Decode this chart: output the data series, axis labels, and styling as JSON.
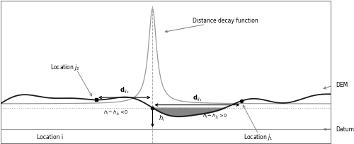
{
  "figsize": [
    5.0,
    2.04
  ],
  "dpi": 100,
  "bg_color": "#ffffff",
  "dem_color": "#1a1a1a",
  "decay_color": "#999999",
  "fill_color": "#707070",
  "datum_line_color": "#999999",
  "x_min": 0.0,
  "x_max": 10.0,
  "y_min": -2.5,
  "y_max": 6.5,
  "origin_x": 4.6,
  "labels": {
    "distance_decay": "Distance decay function",
    "DEM": "DEM",
    "Datum": "Datum",
    "location_i": "Location i",
    "location_j1": "Location $j_1$",
    "location_j2": "Location $j_2$",
    "d_ij2": "$\\mathbf{d}_{ij_2}$",
    "d_ij1": "$\\mathbf{d}_{ij_1}$",
    "h_i": "$h_i$",
    "hi_minus_hj2": "$h_i - h_{j_2} < 0$",
    "hi_minus_hj1": "$h_i - h_{j_1} > 0$"
  }
}
